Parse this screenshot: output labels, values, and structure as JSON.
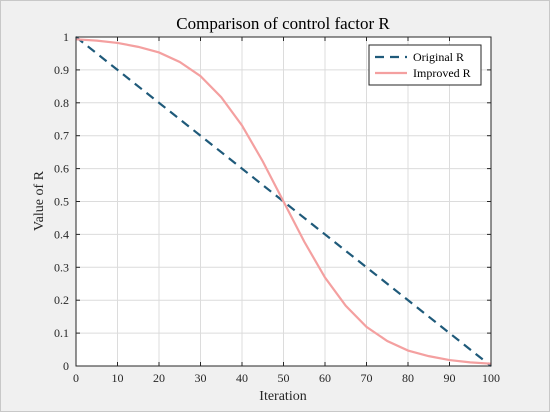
{
  "chart_data": {
    "type": "line",
    "title": "Comparison of control factor R",
    "xlabel": "Iteration",
    "ylabel": "Value of R",
    "xlim": [
      0,
      100
    ],
    "ylim": [
      0,
      1
    ],
    "xticks": [
      0,
      10,
      20,
      30,
      40,
      50,
      60,
      70,
      80,
      90,
      100
    ],
    "yticks": [
      0,
      0.1,
      0.2,
      0.3,
      0.4,
      0.5,
      0.6,
      0.7,
      0.8,
      0.9,
      1
    ],
    "grid": true,
    "legend_position": "top-right",
    "series": [
      {
        "name": "Original R",
        "style": "dashed",
        "color": "#1f5a7a",
        "x": [
          0,
          100
        ],
        "y": [
          1,
          0
        ]
      },
      {
        "name": "Improved R",
        "style": "solid",
        "color": "#f4a0a0",
        "x": [
          0,
          5,
          10,
          15,
          20,
          25,
          30,
          35,
          40,
          45,
          50,
          55,
          60,
          65,
          70,
          75,
          80,
          85,
          90,
          95,
          100
        ],
        "y": [
          0.993,
          0.989,
          0.982,
          0.97,
          0.953,
          0.924,
          0.881,
          0.817,
          0.731,
          0.622,
          0.5,
          0.378,
          0.269,
          0.183,
          0.119,
          0.076,
          0.047,
          0.03,
          0.018,
          0.011,
          0.007
        ]
      }
    ]
  }
}
